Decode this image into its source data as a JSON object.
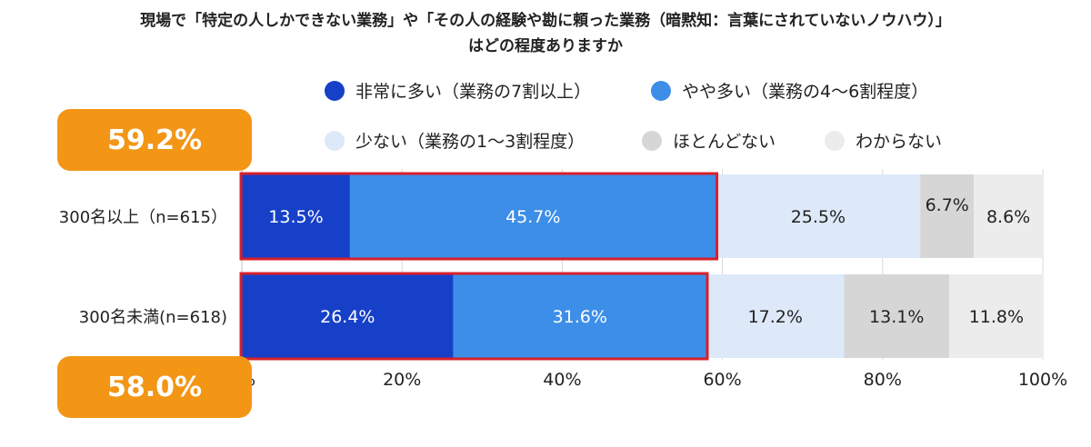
{
  "chart_data": {
    "type": "bar",
    "orientation": "horizontal",
    "stacked": true,
    "title": "現場で「特定の人しかできない業務」や「その人の経験や勘に頼った業務（暗黙知：言葉にされていないノウハウ）」",
    "subtitle": "はどの程度ありますか",
    "categories": [
      "300名以上（n=615）",
      "300名未満(n=618)"
    ],
    "series": [
      {
        "name": "非常に多い（業務の7割以上）",
        "values": [
          13.5,
          26.4
        ],
        "labels": [
          "13.5%",
          "26.4%"
        ],
        "color": "#1740c8",
        "text_color": "#ffffff"
      },
      {
        "name": "やや多い（業務の4〜6割程度）",
        "values": [
          45.7,
          31.6
        ],
        "labels": [
          "45.7%",
          "31.6%"
        ],
        "color": "#3d8ee8",
        "text_color": "#ffffff"
      },
      {
        "name": "少ない（業務の1〜3割程度）",
        "values": [
          25.5,
          17.2
        ],
        "labels": [
          "25.5%",
          "17.2%"
        ],
        "color": "#dde9f8",
        "text_color": "#222222"
      },
      {
        "name": "ほとんどない",
        "values": [
          6.7,
          13.1
        ],
        "labels": [
          "6.7%",
          "13.1%"
        ],
        "color": "#d6d6d6",
        "text_color": "#222222"
      },
      {
        "name": "わからない",
        "values": [
          8.6,
          11.8
        ],
        "labels": [
          "8.6%",
          "11.8%"
        ],
        "color": "#ececec",
        "text_color": "#222222"
      }
    ],
    "xlim": [
      0,
      100
    ],
    "x_ticks": [
      "0%",
      "20%",
      "40%",
      "60%",
      "80%",
      "100%"
    ],
    "grid": true,
    "legend_position": "top",
    "highlight_color": "#d9202a",
    "callouts": [
      {
        "text": "59.2%",
        "color": "#f39616"
      },
      {
        "text": "58.0%",
        "color": "#f39616"
      }
    ]
  }
}
